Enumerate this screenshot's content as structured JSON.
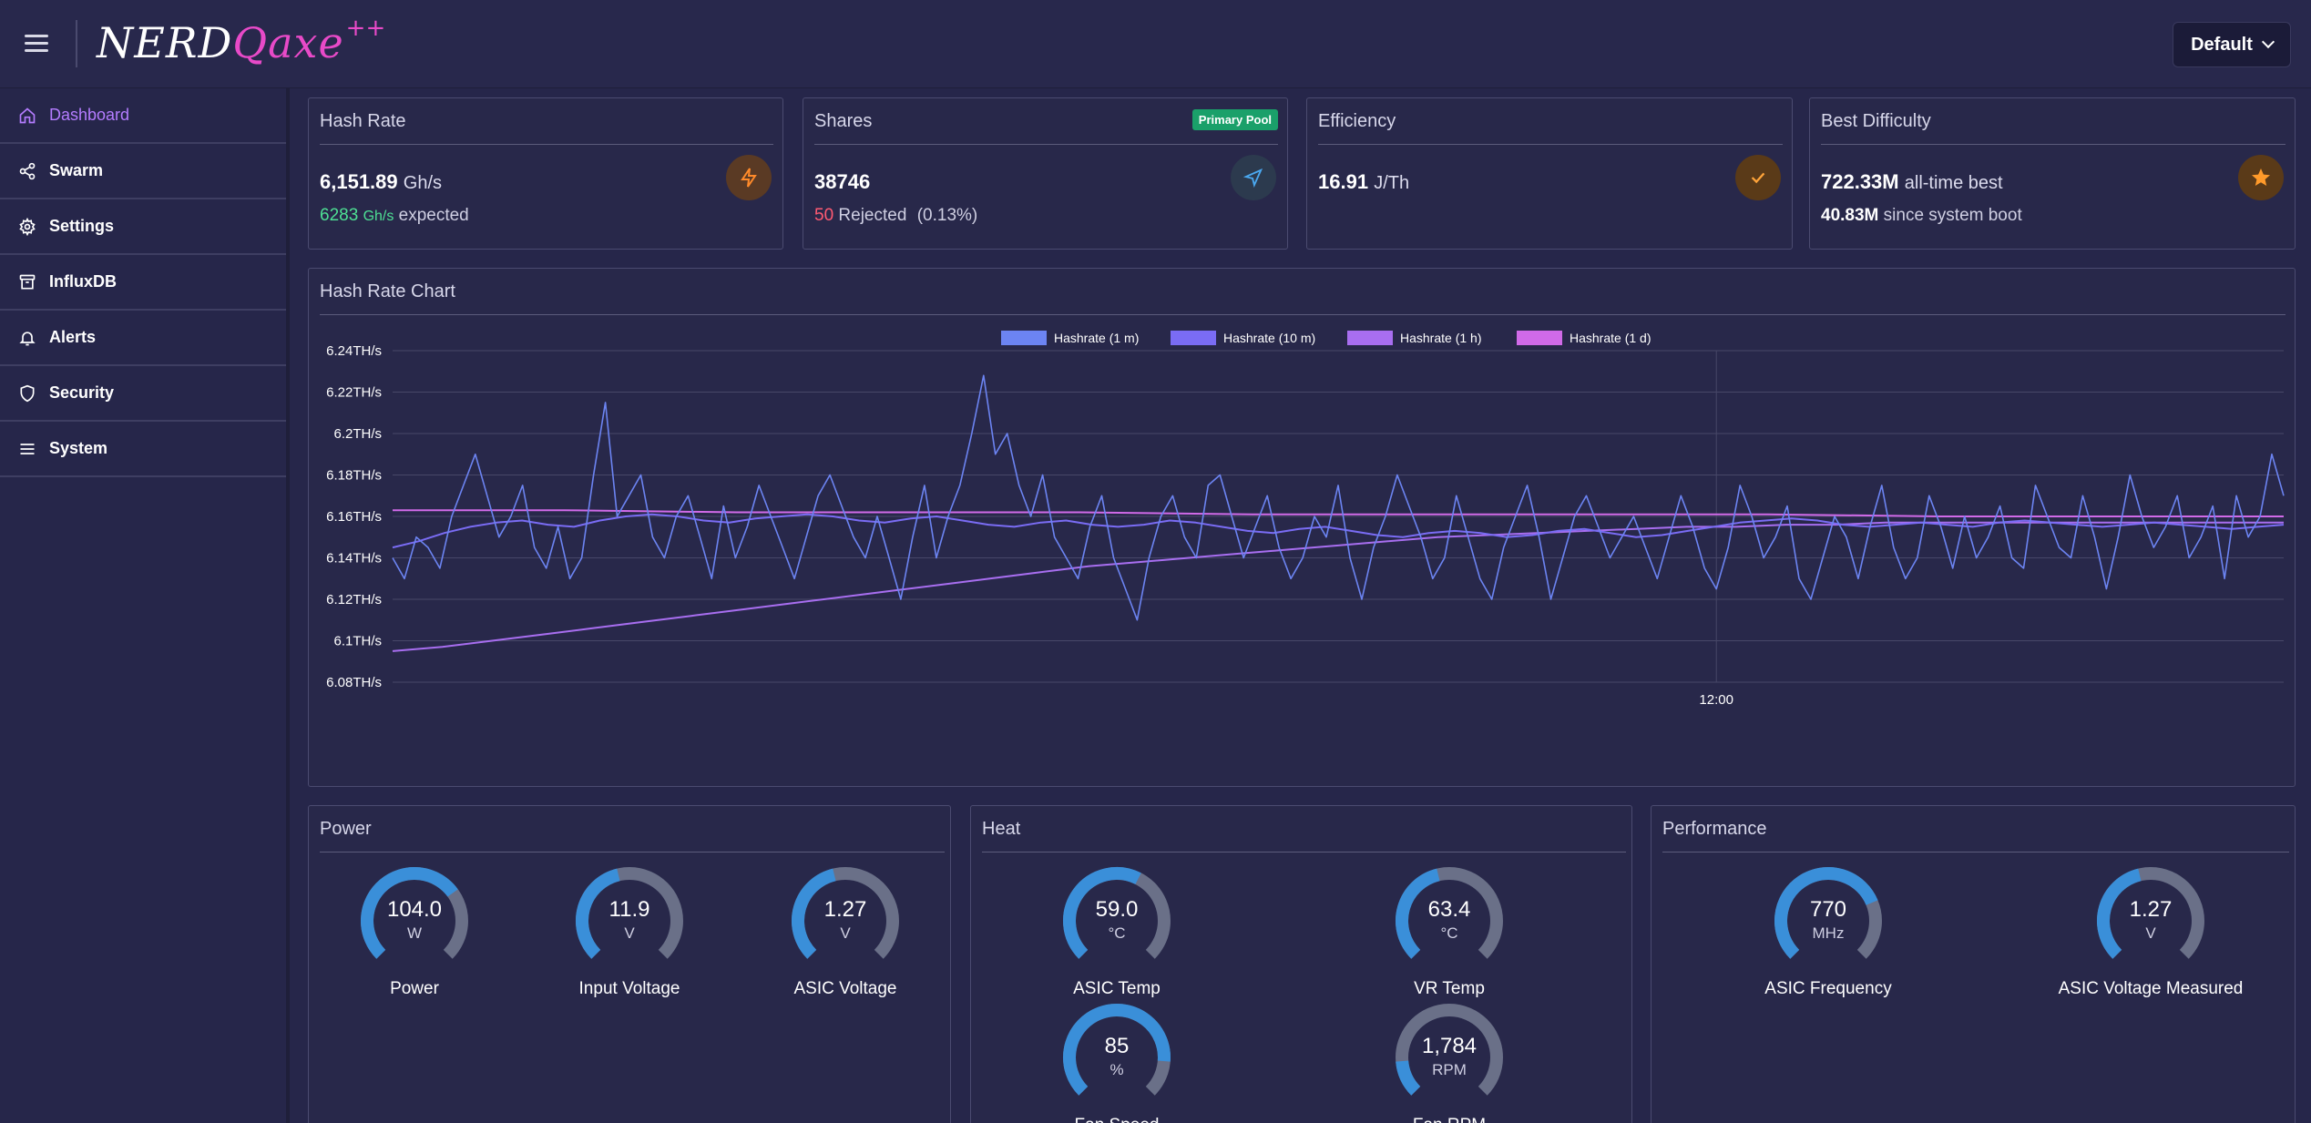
{
  "app": {
    "logo_main": "NERD",
    "logo_accent": "Qaxe",
    "logo_super": "++",
    "profile": "Default"
  },
  "sidebar": {
    "items": [
      {
        "label": "Dashboard",
        "icon": "home-icon",
        "active": true
      },
      {
        "label": "Swarm",
        "icon": "share-icon"
      },
      {
        "label": "Settings",
        "icon": "gear-icon"
      },
      {
        "label": "InfluxDB",
        "icon": "archive-icon"
      },
      {
        "label": "Alerts",
        "icon": "bell-icon"
      },
      {
        "label": "Security",
        "icon": "shield-icon"
      },
      {
        "label": "System",
        "icon": "list-icon"
      }
    ]
  },
  "stats": {
    "hashrate": {
      "title": "Hash Rate",
      "value": "6,151.89",
      "unit": "Gh/s",
      "expected_value": "6283",
      "expected_unit": "Gh/s",
      "expected_label": "expected",
      "icon": "bolt-icon"
    },
    "shares": {
      "title": "Shares",
      "badge": "Primary Pool",
      "value": "38746",
      "rejected": "50",
      "rejected_label": "Rejected",
      "rejected_pct": "(0.13%)",
      "icon": "send-icon"
    },
    "efficiency": {
      "title": "Efficiency",
      "value": "16.91",
      "unit": "J/Th",
      "icon": "check-icon"
    },
    "best_diff": {
      "title": "Best Difficulty",
      "value": "722.33M",
      "value_label": "all-time best",
      "since_value": "40.83M",
      "since_label": "since system boot",
      "icon": "star-icon"
    }
  },
  "chart_data": {
    "type": "line",
    "title": "Hash Rate Chart",
    "ylabel": "",
    "xlabel": "",
    "y_unit": "TH/s",
    "ylim": [
      6.08,
      6.24
    ],
    "y_ticks": [
      "6.24TH/s",
      "6.22TH/s",
      "6.2TH/s",
      "6.18TH/s",
      "6.16TH/s",
      "6.14TH/s",
      "6.12TH/s",
      "6.1TH/s",
      "6.08TH/s"
    ],
    "x_ticks": [
      "12:00"
    ],
    "x_tick_pos": 0.7,
    "legend_position": "top-center",
    "grid": true,
    "series": [
      {
        "name": "Hashrate (1 m)",
        "color": "#6c84f2",
        "values": [
          6.14,
          6.13,
          6.15,
          6.145,
          6.135,
          6.16,
          6.175,
          6.19,
          6.17,
          6.15,
          6.16,
          6.175,
          6.145,
          6.135,
          6.155,
          6.13,
          6.14,
          6.18,
          6.215,
          6.16,
          6.17,
          6.18,
          6.15,
          6.14,
          6.16,
          6.17,
          6.15,
          6.13,
          6.165,
          6.14,
          6.155,
          6.175,
          6.16,
          6.145,
          6.13,
          6.15,
          6.17,
          6.18,
          6.165,
          6.15,
          6.14,
          6.16,
          6.14,
          6.12,
          6.15,
          6.175,
          6.14,
          6.16,
          6.175,
          6.2,
          6.228,
          6.19,
          6.2,
          6.175,
          6.16,
          6.18,
          6.15,
          6.14,
          6.13,
          6.155,
          6.17,
          6.14,
          6.125,
          6.11,
          6.14,
          6.16,
          6.17,
          6.15,
          6.14,
          6.175,
          6.18,
          6.16,
          6.14,
          6.155,
          6.17,
          6.145,
          6.13,
          6.14,
          6.16,
          6.15,
          6.175,
          6.14,
          6.12,
          6.145,
          6.16,
          6.18,
          6.165,
          6.15,
          6.13,
          6.14,
          6.17,
          6.15,
          6.13,
          6.12,
          6.145,
          6.16,
          6.175,
          6.15,
          6.12,
          6.14,
          6.16,
          6.17,
          6.155,
          6.14,
          6.15,
          6.16,
          6.145,
          6.13,
          6.15,
          6.17,
          6.155,
          6.135,
          6.125,
          6.145,
          6.175,
          6.16,
          6.14,
          6.15,
          6.165,
          6.13,
          6.12,
          6.14,
          6.16,
          6.15,
          6.13,
          6.155,
          6.175,
          6.145,
          6.13,
          6.14,
          6.17,
          6.155,
          6.135,
          6.16,
          6.14,
          6.15,
          6.165,
          6.14,
          6.135,
          6.175,
          6.16,
          6.145,
          6.14,
          6.17,
          6.15,
          6.125,
          6.15,
          6.18,
          6.16,
          6.145,
          6.155,
          6.17,
          6.14,
          6.15,
          6.165,
          6.13,
          6.17,
          6.15,
          6.16,
          6.19,
          6.17
        ]
      },
      {
        "name": "Hashrate (10 m)",
        "color": "#7a6cf4",
        "values": [
          6.145,
          6.148,
          6.152,
          6.155,
          6.157,
          6.158,
          6.156,
          6.155,
          6.158,
          6.16,
          6.161,
          6.16,
          6.158,
          6.157,
          6.159,
          6.16,
          6.161,
          6.16,
          6.158,
          6.157,
          6.159,
          6.16,
          6.158,
          6.156,
          6.155,
          6.157,
          6.158,
          6.156,
          6.155,
          6.156,
          6.158,
          6.157,
          6.155,
          6.153,
          6.152,
          6.154,
          6.155,
          6.153,
          6.151,
          6.15,
          6.152,
          6.153,
          6.152,
          6.15,
          6.151,
          6.153,
          6.154,
          6.152,
          6.15,
          6.151,
          6.153,
          6.155,
          6.157,
          6.158,
          6.159,
          6.158,
          6.156,
          6.155,
          6.156,
          6.157,
          6.156,
          6.155,
          6.157,
          6.158,
          6.157,
          6.156,
          6.155,
          6.156,
          6.157,
          6.156,
          6.155,
          6.154,
          6.155,
          6.156
        ]
      },
      {
        "name": "Hashrate (1 h)",
        "color": "#a86ef0",
        "values": [
          6.095,
          6.097,
          6.1,
          6.103,
          6.106,
          6.109,
          6.112,
          6.115,
          6.118,
          6.121,
          6.124,
          6.127,
          6.13,
          6.133,
          6.136,
          6.138,
          6.14,
          6.142,
          6.144,
          6.146,
          6.148,
          6.15,
          6.151,
          6.152,
          6.153,
          6.154,
          6.155,
          6.155,
          6.156,
          6.156,
          6.157,
          6.157,
          6.157,
          6.157,
          6.157,
          6.157,
          6.157,
          6.157,
          6.157
        ]
      },
      {
        "name": "Hashrate (1 d)",
        "color": "#d06ae8",
        "values": [
          6.163,
          6.163,
          6.162,
          6.162,
          6.162,
          6.161,
          6.161,
          6.161,
          6.161,
          6.16,
          6.16,
          6.16
        ]
      }
    ]
  },
  "panels": {
    "power": {
      "title": "Power",
      "gauges": [
        {
          "value": "104.0",
          "unit": "W",
          "label": "Power",
          "fill": 0.7
        },
        {
          "value": "11.9",
          "unit": "V",
          "label": "Input Voltage",
          "fill": 0.45
        },
        {
          "value": "1.27",
          "unit": "V",
          "label": "ASIC Voltage",
          "fill": 0.45
        }
      ]
    },
    "heat": {
      "title": "Heat",
      "gauges": [
        {
          "value": "59.0",
          "unit": "°C",
          "label": "ASIC Temp",
          "fill": 0.6
        },
        {
          "value": "63.4",
          "unit": "°C",
          "label": "VR Temp",
          "fill": 0.45
        },
        {
          "value": "85",
          "unit": "%",
          "label": "Fan Speed",
          "fill": 0.85
        },
        {
          "value": "1,784",
          "unit": "RPM",
          "label": "Fan RPM",
          "fill": 0.15
        }
      ]
    },
    "performance": {
      "title": "Performance",
      "gauges": [
        {
          "value": "770",
          "unit": "MHz",
          "label": "ASIC Frequency",
          "fill": 0.75
        },
        {
          "value": "1.27",
          "unit": "V",
          "label": "ASIC Voltage Measured",
          "fill": 0.45
        }
      ]
    }
  },
  "colors": {
    "accent": "#b47cff",
    "gauge_fill": "#3a8fd9",
    "gauge_track": "#6a7088",
    "good": "#4ee094",
    "bad": "#ff5a72"
  }
}
